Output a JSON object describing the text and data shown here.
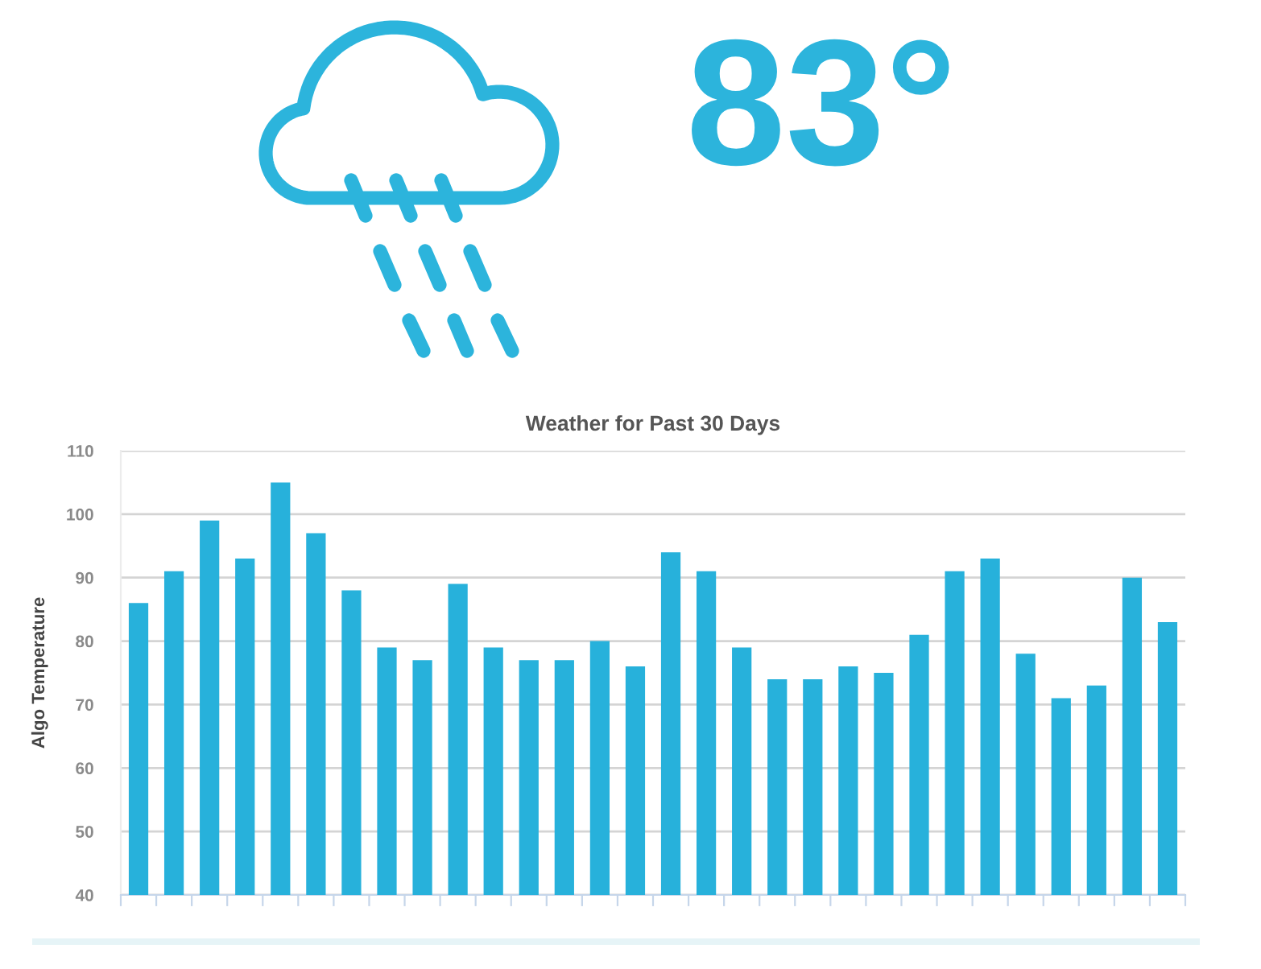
{
  "chart_data": {
    "type": "bar",
    "title": "Weather for Past 30 Days",
    "ylabel": "Algo Temperature",
    "categories": [
      null,
      null,
      null,
      null,
      null,
      null,
      null,
      null,
      null,
      null,
      null,
      null,
      null,
      null,
      null,
      null,
      null,
      null,
      null,
      null,
      null,
      null,
      null,
      null,
      null,
      null,
      null,
      null,
      null,
      null
    ],
    "values": [
      86,
      91,
      99,
      93,
      105,
      97,
      88,
      79,
      77,
      89,
      79,
      77,
      77,
      80,
      76,
      94,
      91,
      79,
      74,
      74,
      76,
      75,
      81,
      91,
      93,
      78,
      71,
      73,
      90,
      83
    ],
    "color": "#27b1db",
    "ylim": [
      40,
      110
    ],
    "yticks": [
      40,
      50,
      60,
      70,
      80,
      90,
      100,
      110
    ],
    "grid": "y",
    "tick_labels": "y",
    "annotations": [
      "83°"
    ]
  }
}
